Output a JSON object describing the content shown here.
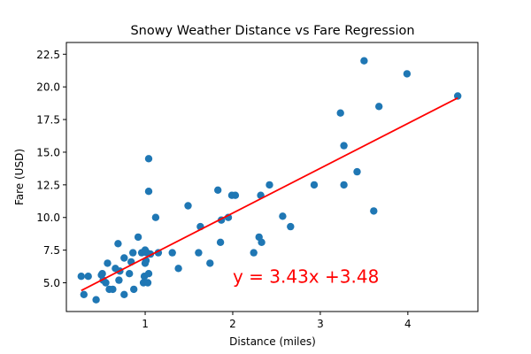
{
  "chart_data": {
    "type": "scatter",
    "title": "Snowy Weather Distance vs Fare Regression",
    "xlabel": "Distance (miles)",
    "ylabel": "Fare (USD)",
    "xlim": [
      0.1,
      4.8
    ],
    "ylim": [
      2.8,
      23.4
    ],
    "xticks": [
      1,
      2,
      3,
      4
    ],
    "xtick_labels": [
      "1",
      "2",
      "3",
      "4"
    ],
    "yticks": [
      5.0,
      7.5,
      10.0,
      12.5,
      15.0,
      17.5,
      20.0,
      22.5
    ],
    "ytick_labels": [
      "5.0",
      "7.5",
      "10.0",
      "12.5",
      "15.0",
      "17.5",
      "20.0",
      "22.5"
    ],
    "grid": false,
    "colors": {
      "points": "#1f77b4",
      "line": "#ff0000",
      "annotation": "#ff0000"
    },
    "points": [
      {
        "x": 0.27,
        "y": 5.5
      },
      {
        "x": 0.3,
        "y": 4.1
      },
      {
        "x": 0.35,
        "y": 5.5
      },
      {
        "x": 0.44,
        "y": 3.7
      },
      {
        "x": 0.5,
        "y": 5.6
      },
      {
        "x": 0.51,
        "y": 5.7
      },
      {
        "x": 0.52,
        "y": 5.2
      },
      {
        "x": 0.55,
        "y": 5.0
      },
      {
        "x": 0.57,
        "y": 6.5
      },
      {
        "x": 0.59,
        "y": 4.5
      },
      {
        "x": 0.63,
        "y": 4.5
      },
      {
        "x": 0.66,
        "y": 6.1
      },
      {
        "x": 0.69,
        "y": 8.0
      },
      {
        "x": 0.7,
        "y": 5.2
      },
      {
        "x": 0.71,
        "y": 5.9
      },
      {
        "x": 0.76,
        "y": 6.9
      },
      {
        "x": 0.76,
        "y": 4.1
      },
      {
        "x": 0.82,
        "y": 5.7
      },
      {
        "x": 0.84,
        "y": 6.6
      },
      {
        "x": 0.86,
        "y": 7.3
      },
      {
        "x": 0.87,
        "y": 4.5
      },
      {
        "x": 0.92,
        "y": 8.5
      },
      {
        "x": 0.96,
        "y": 7.3
      },
      {
        "x": 0.98,
        "y": 5.0
      },
      {
        "x": 0.99,
        "y": 5.5
      },
      {
        "x": 1.0,
        "y": 7.5
      },
      {
        "x": 1.0,
        "y": 6.5
      },
      {
        "x": 1.01,
        "y": 6.7
      },
      {
        "x": 1.02,
        "y": 7.3
      },
      {
        "x": 1.03,
        "y": 5.0
      },
      {
        "x": 1.04,
        "y": 5.7
      },
      {
        "x": 1.04,
        "y": 14.5
      },
      {
        "x": 1.04,
        "y": 12.0
      },
      {
        "x": 1.06,
        "y": 7.2
      },
      {
        "x": 1.12,
        "y": 10.0
      },
      {
        "x": 1.15,
        "y": 7.3
      },
      {
        "x": 1.31,
        "y": 7.3
      },
      {
        "x": 1.38,
        "y": 6.1
      },
      {
        "x": 1.49,
        "y": 10.9
      },
      {
        "x": 1.61,
        "y": 7.3
      },
      {
        "x": 1.63,
        "y": 9.3
      },
      {
        "x": 1.74,
        "y": 6.5
      },
      {
        "x": 1.83,
        "y": 12.1
      },
      {
        "x": 1.86,
        "y": 8.1
      },
      {
        "x": 1.87,
        "y": 9.8
      },
      {
        "x": 1.95,
        "y": 10.0
      },
      {
        "x": 1.99,
        "y": 11.7
      },
      {
        "x": 2.03,
        "y": 11.7
      },
      {
        "x": 2.24,
        "y": 7.3
      },
      {
        "x": 2.3,
        "y": 8.5
      },
      {
        "x": 2.32,
        "y": 11.7
      },
      {
        "x": 2.33,
        "y": 8.1
      },
      {
        "x": 2.42,
        "y": 12.5
      },
      {
        "x": 2.57,
        "y": 10.1
      },
      {
        "x": 2.66,
        "y": 9.3
      },
      {
        "x": 2.93,
        "y": 12.5
      },
      {
        "x": 3.23,
        "y": 18.0
      },
      {
        "x": 3.27,
        "y": 15.5
      },
      {
        "x": 3.27,
        "y": 12.5
      },
      {
        "x": 3.42,
        "y": 13.5
      },
      {
        "x": 3.5,
        "y": 22.0
      },
      {
        "x": 3.61,
        "y": 10.5
      },
      {
        "x": 3.67,
        "y": 18.5
      },
      {
        "x": 3.99,
        "y": 21.0
      },
      {
        "x": 4.57,
        "y": 19.3
      }
    ],
    "regression": {
      "slope": 3.43,
      "intercept": 3.48,
      "x_range": [
        0.27,
        4.57
      ]
    },
    "annotation": {
      "text": "y = 3.43x +3.48",
      "x": 2.0,
      "y": 5.0
    }
  }
}
